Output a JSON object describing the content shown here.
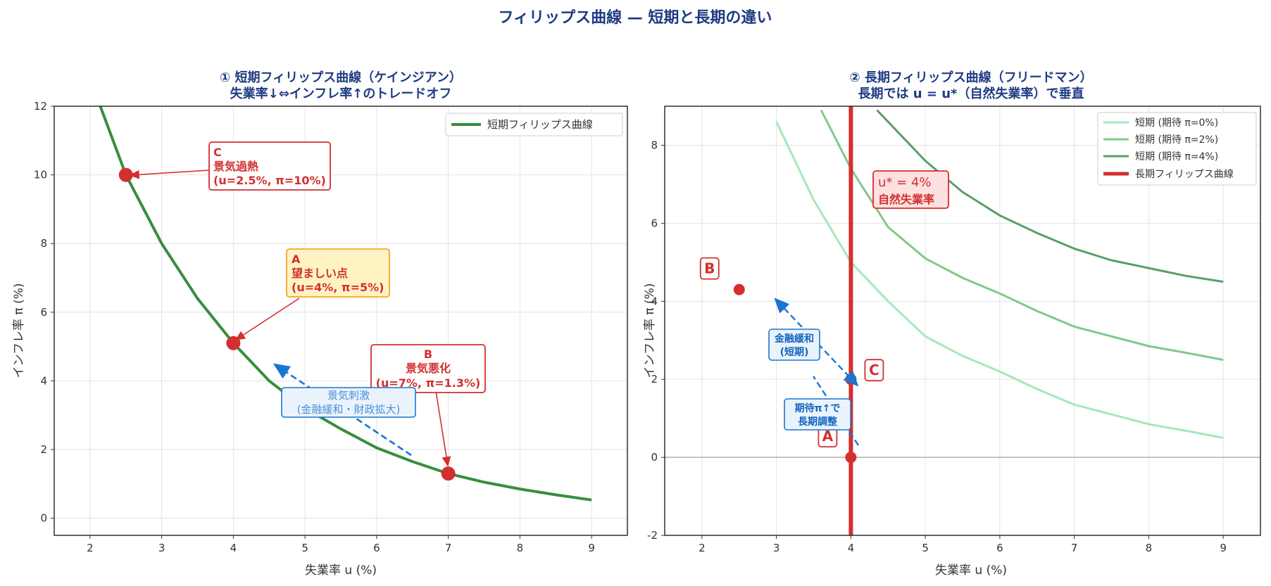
{
  "title": "フィリップス曲線 — 短期と長期の違い",
  "colors": {
    "title": "#1f3b82",
    "short_run": "#388e3c",
    "long_run": "#d32f2f",
    "point": "#d32f2f",
    "arrow_blue": "#1976d2",
    "curve_pi0": "#a5e8b8",
    "curve_pi2": "#80c98a",
    "curve_pi4": "#5a9e64"
  },
  "chart_data": [
    {
      "type": "line",
      "title_line1": "① 短期フィリップス曲線（ケインジアン）",
      "title_line2": "失業率↓⇔インフレ率↑のトレードオフ",
      "xlabel": "失業率 u (%)",
      "ylabel": "インフレ率 π (%)",
      "xlim": [
        1.5,
        9.5
      ],
      "ylim": [
        -0.5,
        12
      ],
      "xticks": [
        "2",
        "3",
        "4",
        "5",
        "6",
        "7",
        "8",
        "9"
      ],
      "yticks": [
        "0",
        "2",
        "4",
        "6",
        "8",
        "10",
        "12"
      ],
      "grid": true,
      "legend_placement": "top-right",
      "series": [
        {
          "name": "短期フィリップス曲線",
          "x": [
            1.5,
            2.0,
            2.5,
            3.0,
            3.5,
            4.0,
            4.5,
            5.0,
            5.5,
            6.0,
            6.5,
            7.0,
            7.5,
            8.0,
            8.5,
            9.0
          ],
          "y": [
            16.9,
            12.8,
            10.0,
            8.0,
            6.4,
            5.1,
            4.0,
            3.2,
            2.6,
            2.05,
            1.65,
            1.3,
            1.05,
            0.85,
            0.68,
            0.53
          ]
        }
      ],
      "points": [
        {
          "label": "C",
          "x": 2.5,
          "y": 10.0
        },
        {
          "label": "A",
          "x": 4.0,
          "y": 5.1
        },
        {
          "label": "B",
          "x": 7.0,
          "y": 1.3
        }
      ],
      "annotations": {
        "C": {
          "line1": "C",
          "line2": "景気過熱",
          "line3": "(u=2.5%, π=10%)"
        },
        "A": {
          "line1": "A",
          "line2": "望ましい点",
          "line3": "(u=4%, π=5%)"
        },
        "B": {
          "line1": "B",
          "line2": "景気悪化",
          "line3": "(u=7%, π=1.3%)"
        },
        "stimulus": {
          "line1": "景気刺激",
          "line2": "(金融緩和・財政拡大)"
        }
      }
    },
    {
      "type": "line",
      "title_line1": "② 長期フィリップス曲線（フリードマン）",
      "title_line2": "長期では u = u*（自然失業率）で垂直",
      "xlabel": "失業率 u (%)",
      "ylabel": "インフレ率 π (%)",
      "xlim": [
        1.5,
        9.5
      ],
      "ylim": [
        -2,
        9
      ],
      "xticks": [
        "2",
        "3",
        "4",
        "5",
        "6",
        "7",
        "8",
        "9"
      ],
      "yticks": [
        "-2",
        "0",
        "2",
        "4",
        "6",
        "8"
      ],
      "grid": true,
      "legend_placement": "top-right",
      "series": [
        {
          "name": "短期 (期待 π=0%)",
          "x": [
            3.0,
            3.5,
            4.0,
            4.5,
            5.0,
            5.5,
            6.0,
            6.5,
            7.0,
            7.5,
            8.0,
            8.5,
            9.0
          ],
          "y": [
            8.6,
            6.6,
            5.0,
            4.0,
            3.1,
            2.6,
            2.2,
            1.75,
            1.35,
            1.1,
            0.85,
            0.68,
            0.5
          ]
        },
        {
          "name": "短期 (期待 π=2%)",
          "x": [
            3.6,
            4.0,
            4.5,
            5.0,
            5.5,
            6.0,
            6.5,
            7.0,
            7.5,
            8.0,
            8.5,
            9.0
          ],
          "y": [
            8.9,
            7.4,
            5.9,
            5.1,
            4.6,
            4.2,
            3.75,
            3.35,
            3.1,
            2.85,
            2.68,
            2.5
          ]
        },
        {
          "name": "短期 (期待 π=4%)",
          "x": [
            4.35,
            4.5,
            5.0,
            5.5,
            6.0,
            6.5,
            7.0,
            7.5,
            8.0,
            8.5,
            9.0
          ],
          "y": [
            8.9,
            8.6,
            7.6,
            6.8,
            6.2,
            5.75,
            5.35,
            5.05,
            4.85,
            4.65,
            4.5
          ]
        },
        {
          "name": "長期フィリップス曲線",
          "x": [
            4.0,
            4.0
          ],
          "y": [
            -2,
            9
          ]
        }
      ],
      "points": [
        {
          "label": "A",
          "x": 4.0,
          "y": 0.0
        },
        {
          "label": "B",
          "x": 2.5,
          "y": 4.3
        },
        {
          "label": "C",
          "x": 4.0,
          "y": 2.0
        }
      ],
      "annotations": {
        "natural": {
          "line1": "u* = 4%",
          "line2": "自然失業率"
        },
        "easing": {
          "line1": "金融緩和",
          "line2": "(短期)"
        },
        "adjust": {
          "line1": "期待π↑で",
          "line2": "長期調整"
        }
      }
    }
  ]
}
